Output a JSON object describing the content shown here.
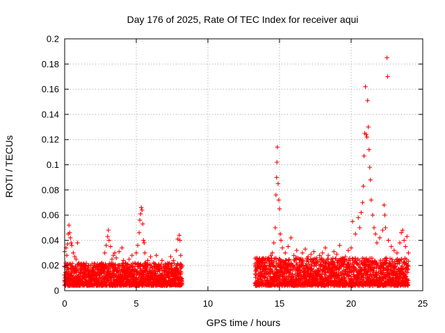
{
  "chart_data": {
    "type": "scatter",
    "title": "Day 176 of 2025, Rate Of TEC Index for receiver aqui",
    "xlabel": "GPS time / hours",
    "ylabel": "ROTI / TECUs",
    "xlim": [
      0,
      25
    ],
    "ylim": [
      0,
      0.2
    ],
    "xticks": [
      0,
      5,
      10,
      15,
      20,
      25
    ],
    "yticks": [
      0,
      0.02,
      0.04,
      0.06,
      0.08,
      0.1,
      0.12,
      0.14,
      0.16,
      0.18,
      0.2
    ],
    "grid": true,
    "marker": "+",
    "color": "#ff0000",
    "series": [
      {
        "name": "ROTI",
        "points": [
          [
            0.0,
            0.031
          ],
          [
            0.1,
            0.034
          ],
          [
            0.15,
            0.028
          ],
          [
            0.2,
            0.037
          ],
          [
            0.25,
            0.045
          ],
          [
            0.3,
            0.052
          ],
          [
            0.35,
            0.046
          ],
          [
            0.4,
            0.042
          ],
          [
            0.45,
            0.038
          ],
          [
            0.5,
            0.036
          ],
          [
            0.6,
            0.03
          ],
          [
            0.7,
            0.027
          ],
          [
            0.8,
            0.025
          ],
          [
            0.9,
            0.038
          ],
          [
            1.0,
            0.022
          ],
          [
            1.2,
            0.02
          ],
          [
            1.4,
            0.018
          ],
          [
            1.6,
            0.017
          ],
          [
            1.8,
            0.016
          ],
          [
            2.0,
            0.018
          ],
          [
            2.2,
            0.02
          ],
          [
            2.4,
            0.019
          ],
          [
            2.6,
            0.022
          ],
          [
            2.8,
            0.03
          ],
          [
            2.9,
            0.036
          ],
          [
            3.0,
            0.043
          ],
          [
            3.05,
            0.048
          ],
          [
            3.1,
            0.04
          ],
          [
            3.2,
            0.035
          ],
          [
            3.3,
            0.025
          ],
          [
            3.4,
            0.028
          ],
          [
            3.5,
            0.03
          ],
          [
            3.6,
            0.026
          ],
          [
            3.8,
            0.031
          ],
          [
            4.0,
            0.034
          ],
          [
            4.1,
            0.024
          ],
          [
            4.3,
            0.02
          ],
          [
            4.5,
            0.025
          ],
          [
            4.7,
            0.028
          ],
          [
            4.9,
            0.022
          ],
          [
            5.0,
            0.03
          ],
          [
            5.1,
            0.036
          ],
          [
            5.2,
            0.046
          ],
          [
            5.25,
            0.056
          ],
          [
            5.3,
            0.061
          ],
          [
            5.35,
            0.066
          ],
          [
            5.4,
            0.064
          ],
          [
            5.45,
            0.053
          ],
          [
            5.5,
            0.04
          ],
          [
            5.55,
            0.038
          ],
          [
            5.6,
            0.03
          ],
          [
            5.8,
            0.024
          ],
          [
            6.0,
            0.027
          ],
          [
            6.2,
            0.022
          ],
          [
            6.4,
            0.028
          ],
          [
            6.6,
            0.02
          ],
          [
            6.8,
            0.024
          ],
          [
            7.0,
            0.018
          ],
          [
            7.2,
            0.022
          ],
          [
            7.4,
            0.027
          ],
          [
            7.6,
            0.024
          ],
          [
            7.8,
            0.032
          ],
          [
            7.9,
            0.041
          ],
          [
            8.0,
            0.044
          ],
          [
            8.05,
            0.04
          ],
          [
            8.1,
            0.028
          ],
          [
            8.2,
            0.02
          ],
          [
            13.4,
            0.02
          ],
          [
            13.6,
            0.018
          ],
          [
            13.8,
            0.022
          ],
          [
            14.0,
            0.02
          ],
          [
            14.2,
            0.025
          ],
          [
            14.4,
            0.028
          ],
          [
            14.5,
            0.03
          ],
          [
            14.6,
            0.038
          ],
          [
            14.7,
            0.05
          ],
          [
            14.75,
            0.076
          ],
          [
            14.8,
            0.09
          ],
          [
            14.82,
            0.102
          ],
          [
            14.85,
            0.114
          ],
          [
            14.9,
            0.085
          ],
          [
            14.95,
            0.072
          ],
          [
            15.0,
            0.065
          ],
          [
            15.05,
            0.045
          ],
          [
            15.1,
            0.04
          ],
          [
            15.2,
            0.034
          ],
          [
            15.4,
            0.03
          ],
          [
            15.6,
            0.035
          ],
          [
            15.8,
            0.042
          ],
          [
            16.0,
            0.028
          ],
          [
            16.2,
            0.032
          ],
          [
            16.4,
            0.025
          ],
          [
            16.6,
            0.03
          ],
          [
            16.8,
            0.033
          ],
          [
            17.0,
            0.027
          ],
          [
            17.2,
            0.029
          ],
          [
            17.4,
            0.031
          ],
          [
            17.6,
            0.026
          ],
          [
            17.8,
            0.028
          ],
          [
            18.0,
            0.03
          ],
          [
            18.2,
            0.034
          ],
          [
            18.4,
            0.028
          ],
          [
            18.6,
            0.025
          ],
          [
            18.8,
            0.031
          ],
          [
            19.0,
            0.029
          ],
          [
            19.2,
            0.036
          ],
          [
            19.4,
            0.026
          ],
          [
            19.6,
            0.027
          ],
          [
            19.8,
            0.032
          ],
          [
            20.0,
            0.034
          ],
          [
            20.1,
            0.055
          ],
          [
            20.3,
            0.045
          ],
          [
            20.5,
            0.058
          ],
          [
            20.6,
            0.05
          ],
          [
            20.7,
            0.062
          ],
          [
            20.8,
            0.07
          ],
          [
            20.85,
            0.083
          ],
          [
            20.9,
            0.107
          ],
          [
            20.95,
            0.125
          ],
          [
            21.0,
            0.162
          ],
          [
            21.05,
            0.124
          ],
          [
            21.1,
            0.122
          ],
          [
            21.15,
            0.151
          ],
          [
            21.2,
            0.13
          ],
          [
            21.25,
            0.112
          ],
          [
            21.3,
            0.098
          ],
          [
            21.35,
            0.088
          ],
          [
            21.4,
            0.072
          ],
          [
            21.5,
            0.06
          ],
          [
            21.6,
            0.05
          ],
          [
            21.7,
            0.045
          ],
          [
            21.8,
            0.038
          ],
          [
            22.0,
            0.042
          ],
          [
            22.2,
            0.048
          ],
          [
            22.3,
            0.068
          ],
          [
            22.35,
            0.06
          ],
          [
            22.4,
            0.05
          ],
          [
            22.5,
            0.185
          ],
          [
            22.55,
            0.17
          ],
          [
            22.6,
            0.04
          ],
          [
            22.8,
            0.035
          ],
          [
            23.0,
            0.032
          ],
          [
            23.2,
            0.03
          ],
          [
            23.4,
            0.038
          ],
          [
            23.5,
            0.046
          ],
          [
            23.6,
            0.048
          ],
          [
            23.7,
            0.04
          ],
          [
            23.8,
            0.035
          ],
          [
            23.9,
            0.043
          ],
          [
            24.0,
            0.03
          ]
        ],
        "bands": [
          {
            "x": [
              0.0,
              8.2
            ],
            "y": [
              0.004,
              0.022
            ]
          },
          {
            "x": [
              13.3,
              24.0
            ],
            "y": [
              0.004,
              0.026
            ]
          }
        ]
      }
    ]
  }
}
